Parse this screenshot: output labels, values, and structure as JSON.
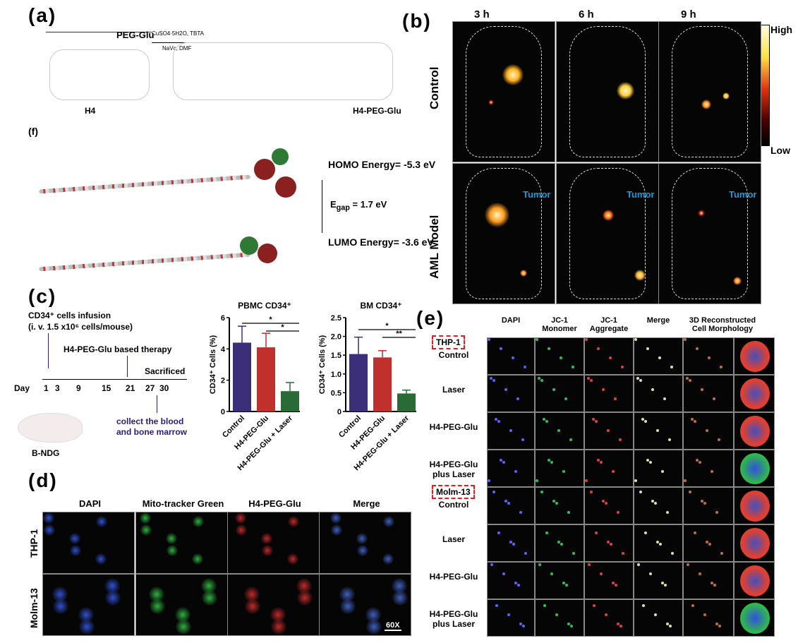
{
  "panel_a": {
    "label": "(a)",
    "reactant1": "PEG-Glu",
    "reactant2": "H4",
    "product": "H4-PEG-Glu",
    "reagents_top": "CuSO4·5H2O, TBTA",
    "reagents_bottom": "NaVc, DMF"
  },
  "panel_f": {
    "label": "(f)",
    "homo": "HOMO Energy= -5.3 eV",
    "egap": "E",
    "egap_sub": "gap",
    "egap_value": " = 1.7 eV",
    "lumo": "LUMO Energy= -3.6 eV"
  },
  "panel_b": {
    "label": "(b)",
    "timepoints": [
      "3 h",
      "6 h",
      "9 h"
    ],
    "rows": [
      "Control",
      "AML Model"
    ],
    "tumor_label": "Tumor",
    "colorbar_high": "High",
    "colorbar_low": "Low"
  },
  "panel_c": {
    "label": "(c)",
    "infusion": "CD34⁺ cells infusion",
    "dose": "(i. v. 1.5 x10⁶ cells/mouse)",
    "therapy": "H4-PEG-Glu based therapy",
    "sacrificed": "Sacrificed",
    "day_label": "Day",
    "days": [
      "1",
      "3",
      "9",
      "15",
      "21",
      "27",
      "30"
    ],
    "collect": "collect the blood",
    "collect2": "and bone marrow",
    "mouse": "B-NDG"
  },
  "chart_data": [
    {
      "type": "bar",
      "title": "PBMC CD34⁺",
      "ylabel": "CD34⁺ Cells (%)",
      "categories": [
        "Control",
        "H4-PEG-Glu",
        "H4-PEG-Glu + Laser"
      ],
      "values": [
        4.4,
        4.1,
        1.3
      ],
      "errors": [
        1.05,
        0.9,
        0.55
      ],
      "ylim": [
        0,
        6
      ],
      "yticks": [
        "0",
        "2",
        "4",
        "6"
      ],
      "colors": [
        "#3b2f7a",
        "#c0312e",
        "#2a6a36"
      ],
      "significance": [
        {
          "from": 0,
          "to": 2,
          "label": "*"
        },
        {
          "from": 1,
          "to": 2,
          "label": "*"
        }
      ]
    },
    {
      "type": "bar",
      "title": "BM CD34⁺",
      "ylabel": "CD34⁺ Cells (%)",
      "categories": [
        "Control",
        "H4-PEG-Glu",
        "H4-PEG-Glu + Laser"
      ],
      "values": [
        1.53,
        1.44,
        0.48
      ],
      "errors": [
        0.45,
        0.18,
        0.09
      ],
      "ylim": [
        0,
        2.5
      ],
      "yticks": [
        "0",
        "0.5",
        "1.0",
        "1.5",
        "2.0",
        "2.5"
      ],
      "colors": [
        "#3b2f7a",
        "#c0312e",
        "#2a6a36"
      ],
      "significance": [
        {
          "from": 0,
          "to": 2,
          "label": "*"
        },
        {
          "from": 1,
          "to": 2,
          "label": "**"
        }
      ]
    }
  ],
  "panel_d": {
    "label": "(d)",
    "columns": [
      "DAPI",
      "Mito-tracker Green",
      "H4-PEG-Glu",
      "Merge"
    ],
    "rows": [
      "THP-1",
      "Molm-13"
    ],
    "scale": "60X"
  },
  "panel_e": {
    "label": "(e)",
    "columns": [
      "DAPI",
      "JC-1\nMonomer",
      "JC-1\nAggregate",
      "Merge",
      "3D Reconstructed\nCell Morphology"
    ],
    "groups": [
      "THP-1",
      "Molm-13"
    ],
    "rows": [
      "Control",
      "Laser",
      "H4-PEG-Glu",
      "H4-PEG-Glu\nplus Laser",
      "Control",
      "Laser",
      "H4-PEG-Glu",
      "H4-PEG-Glu\nplus Laser"
    ]
  }
}
